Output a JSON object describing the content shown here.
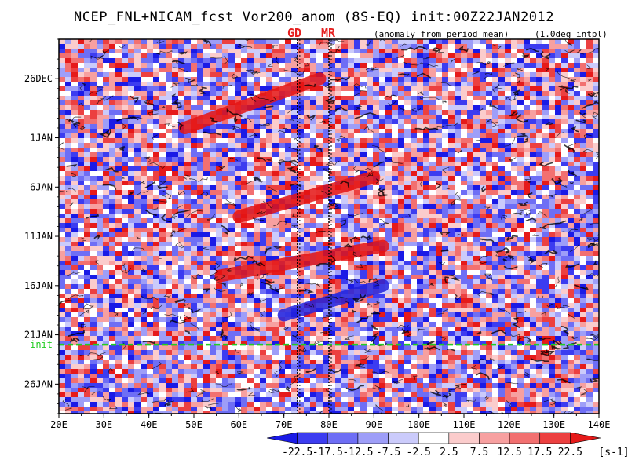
{
  "chart_data": {
    "type": "heatmap",
    "title": "NCEP_FNL+NICAM_fcst Vor200_anom (8S-EQ) init:00Z22JAN2012",
    "subtitle": "(anomaly from period mean)",
    "note": "(1.0deg intpl)",
    "x_ticks": [
      "20E",
      "30E",
      "40E",
      "50E",
      "60E",
      "70E",
      "80E",
      "90E",
      "100E",
      "110E",
      "120E",
      "130E",
      "140E"
    ],
    "x_tick_values": [
      20,
      30,
      40,
      50,
      60,
      70,
      80,
      90,
      100,
      110,
      120,
      130,
      140
    ],
    "xlim": [
      20,
      140
    ],
    "y_ticks": [
      "26DEC",
      "1JAN",
      "6JAN",
      "11JAN",
      "16JAN",
      "21JAN",
      "26JAN"
    ],
    "y_tick_values": [
      "2011-12-26",
      "2012-01-01",
      "2012-01-06",
      "2012-01-11",
      "2012-01-16",
      "2012-01-21",
      "2012-01-26"
    ],
    "ylim": [
      "2011-12-22",
      "2012-01-29"
    ],
    "init_line": {
      "label": "init",
      "date": "2012-01-22",
      "color": "#22cc22"
    },
    "site_markers": [
      {
        "label": "GD",
        "lon": 73
      },
      {
        "label": "MR",
        "lon": 80
      }
    ],
    "colorbar": {
      "labels": [
        "-22.5",
        "-17.5",
        "-12.5",
        "-7.5",
        "-2.5",
        "2.5",
        "7.5",
        "12.5",
        "17.5",
        "22.5"
      ],
      "unit": "[s-1]",
      "colors": [
        "#1a1ae6",
        "#3c3cf0",
        "#6e6ef5",
        "#9e9ef8",
        "#cbcbfb",
        "#ffffff",
        "#fbcccc",
        "#f7a0a0",
        "#f27070",
        "#ec4040",
        "#e61a1a"
      ]
    },
    "features": [
      {
        "label": "positive band",
        "lon_start": 48,
        "lon_end": 78,
        "date_start": "2011-12-31",
        "date_end": "2011-12-26"
      },
      {
        "label": "positive band",
        "lon_start": 60,
        "lon_end": 90,
        "date_start": "2012-01-09",
        "date_end": "2012-01-05"
      },
      {
        "label": "positive band",
        "lon_start": 56,
        "lon_end": 92,
        "date_start": "2012-01-15",
        "date_end": "2012-01-12"
      },
      {
        "label": "negative band",
        "lon_start": 70,
        "lon_end": 92,
        "date_start": "2012-01-19",
        "date_end": "2012-01-16"
      }
    ]
  }
}
